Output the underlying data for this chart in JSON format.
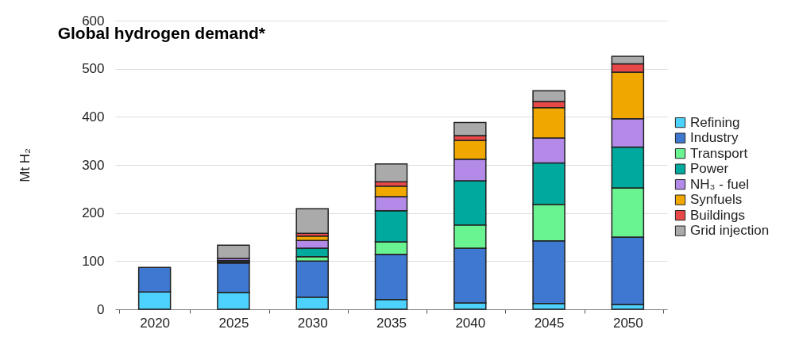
{
  "chart_data": {
    "type": "bar",
    "stacked": true,
    "title": "Global hydrogen demand*",
    "ylabel": "Mt H₂",
    "categories": [
      "2020",
      "2025",
      "2030",
      "2035",
      "2040",
      "2045",
      "2050"
    ],
    "series": [
      {
        "name": "Refining",
        "color": "#4dd2ff",
        "values": [
          36,
          35,
          25,
          20,
          13,
          12,
          10
        ]
      },
      {
        "name": "Industry",
        "color": "#3f78d0",
        "values": [
          51,
          61,
          75,
          94,
          114,
          130,
          140
        ]
      },
      {
        "name": "Transport",
        "color": "#6af391",
        "values": [
          null,
          2,
          9,
          26,
          48,
          76,
          102
        ]
      },
      {
        "name": "Power",
        "color": "#00a99d",
        "values": [
          null,
          3,
          18,
          65,
          92,
          86,
          85
        ]
      },
      {
        "name": "NH₃ - fuel",
        "color": "#b38ae8",
        "values": [
          null,
          5,
          16,
          29,
          45,
          52,
          59
        ]
      },
      {
        "name": "Synfuels",
        "color": "#f0a800",
        "values": [
          null,
          null,
          9,
          22,
          39,
          63,
          97
        ]
      },
      {
        "name": "Buildings",
        "color": "#e84848",
        "values": [
          null,
          null,
          6,
          9,
          10,
          13,
          17
        ]
      },
      {
        "name": "Grid injection",
        "color": "#aaaaaa",
        "values": [
          null,
          27,
          51,
          37,
          27,
          22,
          16
        ]
      }
    ],
    "ylim": [
      0,
      600
    ],
    "yticks": [
      0,
      100,
      200,
      300,
      400,
      500,
      600
    ],
    "grid": "y",
    "legend": "right"
  }
}
